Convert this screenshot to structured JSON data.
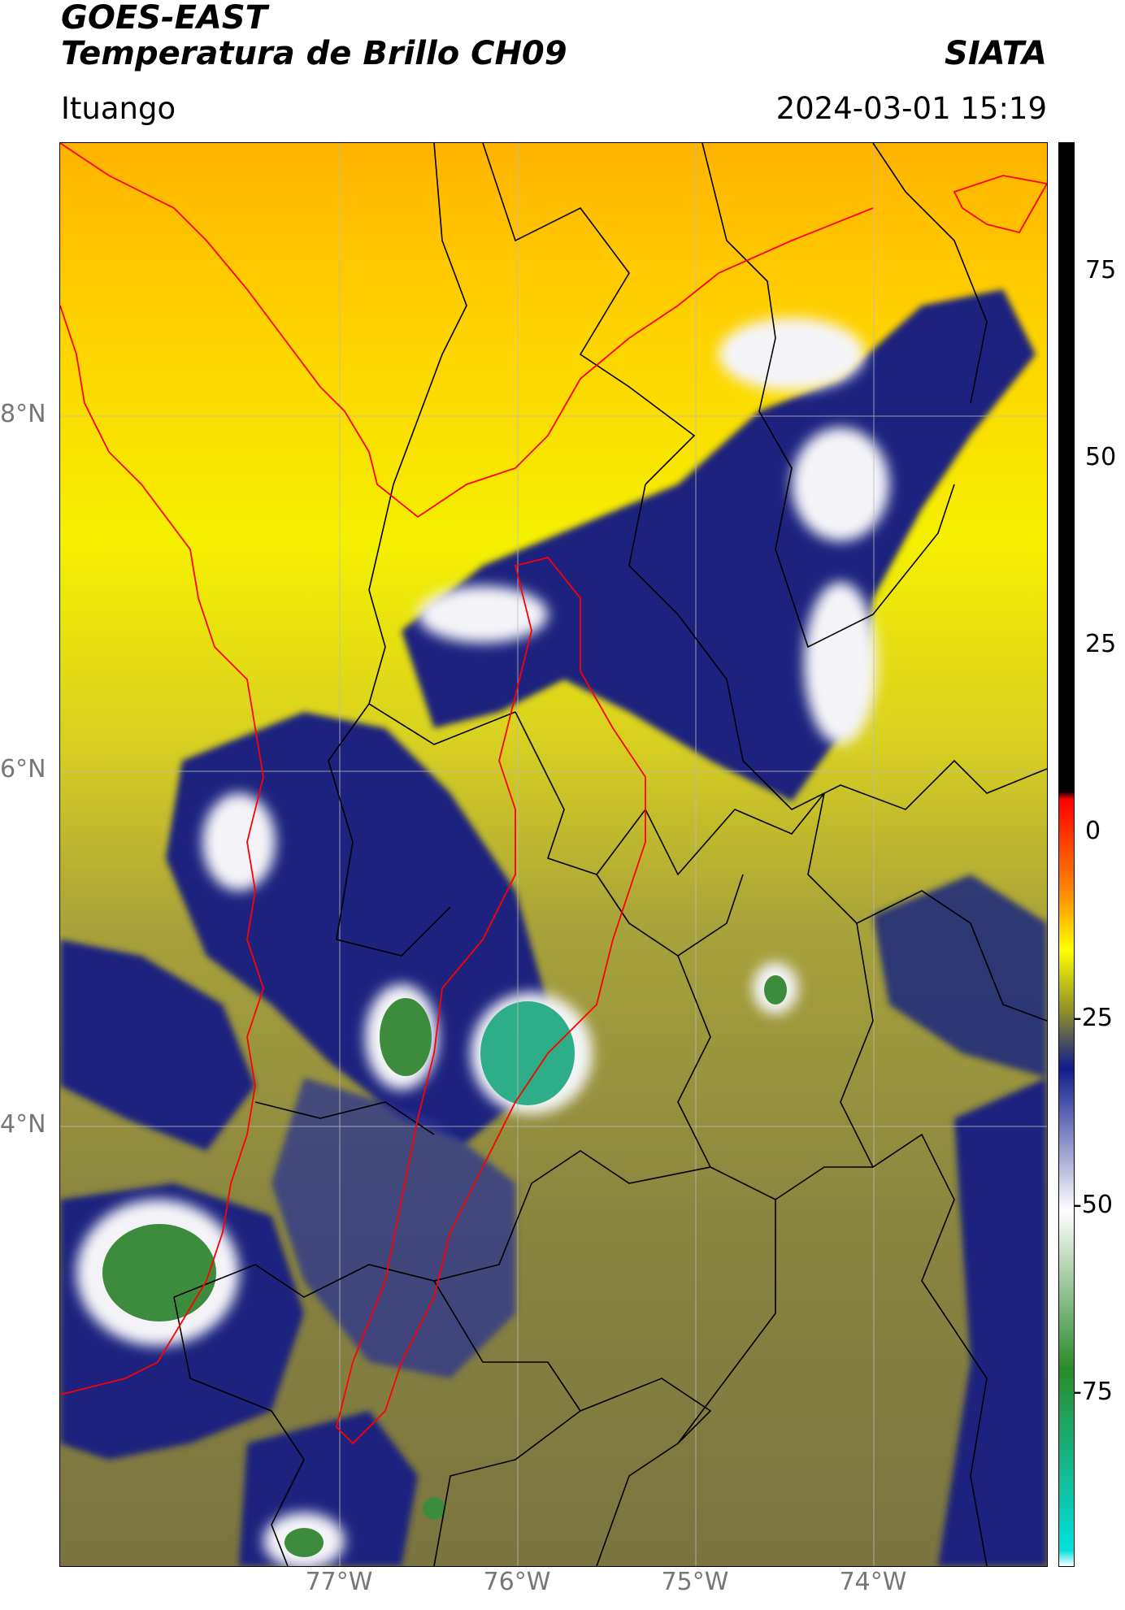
{
  "header": {
    "title_line1": "GOES-EAST",
    "title_line2": "Temperatura de Brillo CH09",
    "org": "SIATA",
    "location": "Ituango",
    "datetime": "2024-03-01 15:19"
  },
  "axes": {
    "lat_ticks": [
      "8°N",
      "6°N",
      "4°N"
    ],
    "lon_ticks": [
      "77°W",
      "76°W",
      "75°W",
      "74°W"
    ]
  },
  "colorbar": {
    "ticks": [
      "75",
      "50",
      "25",
      "0",
      "-25",
      "-50",
      "-75"
    ],
    "stops": [
      {
        "value": 90,
        "color": "#000000"
      },
      {
        "value": 8,
        "color": "#000000"
      },
      {
        "value": 7,
        "color": "#ff0000"
      },
      {
        "value": -5,
        "color": "#ff8c00"
      },
      {
        "value": -12,
        "color": "#ffff00"
      },
      {
        "value": -20,
        "color": "#8c8c2a"
      },
      {
        "value": -27,
        "color": "#101c8c"
      },
      {
        "value": -45,
        "color": "#ffffff"
      },
      {
        "value": -65,
        "color": "#2a8a2a"
      },
      {
        "value": -88,
        "color": "#00e0e0"
      },
      {
        "value": -90,
        "color": "#ffffff"
      }
    ]
  },
  "map_colors": {
    "warm": "#ffb300",
    "yellow": "#f5f000",
    "olive": "#a8a23a",
    "darkolive": "#6f6f40",
    "navy": "#1a237e",
    "white": "#f4f4f8",
    "green": "#3d8c3d",
    "teal": "#2eae88",
    "border_red": "#ff0000",
    "border_black": "#000000",
    "grid": "#bbbbbb"
  }
}
